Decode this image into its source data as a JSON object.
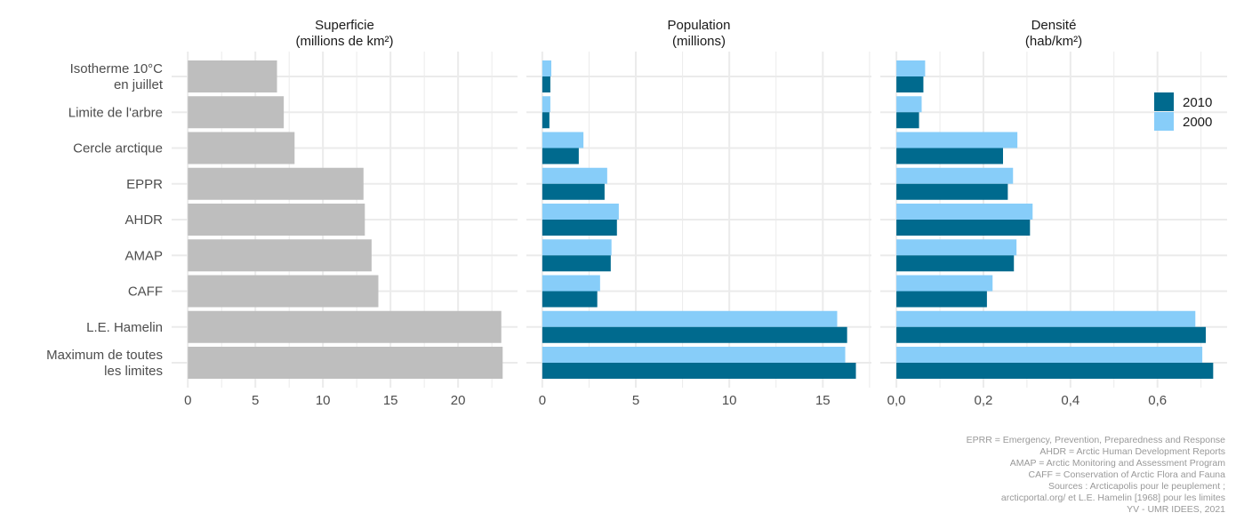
{
  "chart_data": {
    "type": "bar",
    "orientation": "horizontal",
    "categories": [
      "Isotherme 10°C\nen juillet",
      "Limite de l'arbre",
      "Cercle arctique",
      "EPPR",
      "AHDR",
      "AMAP",
      "CAFF",
      "L.E. Hamelin",
      "Maximum de toutes\nles limites"
    ],
    "legend": {
      "position": "top-right",
      "entries": [
        "2010",
        "2000"
      ]
    },
    "colors": {
      "2010": "#006a8e",
      "2000": "#87cdf9",
      "single": "#bebebe",
      "grid": "#ebebeb"
    },
    "panels": [
      {
        "title": "Superficie\n(millions de km²)",
        "ticks": [
          0,
          5,
          10,
          15,
          20
        ],
        "tick_labels": [
          "0",
          "5",
          "10",
          "15",
          "20"
        ],
        "xlim": [
          -1.2,
          24.4
        ],
        "series": [
          {
            "name": "Superficie",
            "values": [
              6.6,
              7.1,
              7.9,
              13.0,
              13.1,
              13.6,
              14.1,
              23.2,
              23.3
            ]
          }
        ]
      },
      {
        "title": "Population\n(millions)",
        "ticks": [
          0,
          5,
          10,
          15
        ],
        "tick_labels": [
          "0",
          "5",
          "10",
          "15"
        ],
        "xlim": [
          -0.85,
          17.6
        ],
        "series": [
          {
            "name": "2000",
            "values": [
              0.48,
              0.43,
              2.2,
              3.47,
              4.09,
              3.7,
              3.09,
              15.77,
              16.2
            ]
          },
          {
            "name": "2010",
            "values": [
              0.43,
              0.38,
              1.95,
              3.33,
              3.99,
              3.66,
              2.94,
              16.3,
              16.77
            ]
          }
        ]
      },
      {
        "title": "Densité\n(hab/km²)",
        "ticks": [
          0,
          0.2,
          0.4,
          0.6
        ],
        "tick_labels": [
          "0,0",
          "0,2",
          "0,4",
          "0,6"
        ],
        "xlim": [
          -0.037,
          0.76
        ],
        "series": [
          {
            "name": "2000",
            "values": [
              0.066,
              0.058,
              0.278,
              0.268,
              0.313,
              0.276,
              0.221,
              0.687,
              0.703
            ]
          },
          {
            "name": "2010",
            "values": [
              0.062,
              0.052,
              0.245,
              0.256,
              0.307,
              0.27,
              0.208,
              0.711,
              0.728
            ]
          }
        ]
      }
    ],
    "caption": [
      "EPRR = Emergency, Prevention, Preparedness and Response",
      "AHDR = Arctic Human Development Reports",
      "AMAP = Arctic Monitoring and Assessment Program",
      "CAFF = Conservation of Arctic Flora and Fauna",
      "Sources : Arcticapolis pour le peuplement ;",
      "arcticportal.org/ et L.E. Hamelin [1968] pour les limites",
      "YV - UMR IDEES, 2021"
    ]
  }
}
